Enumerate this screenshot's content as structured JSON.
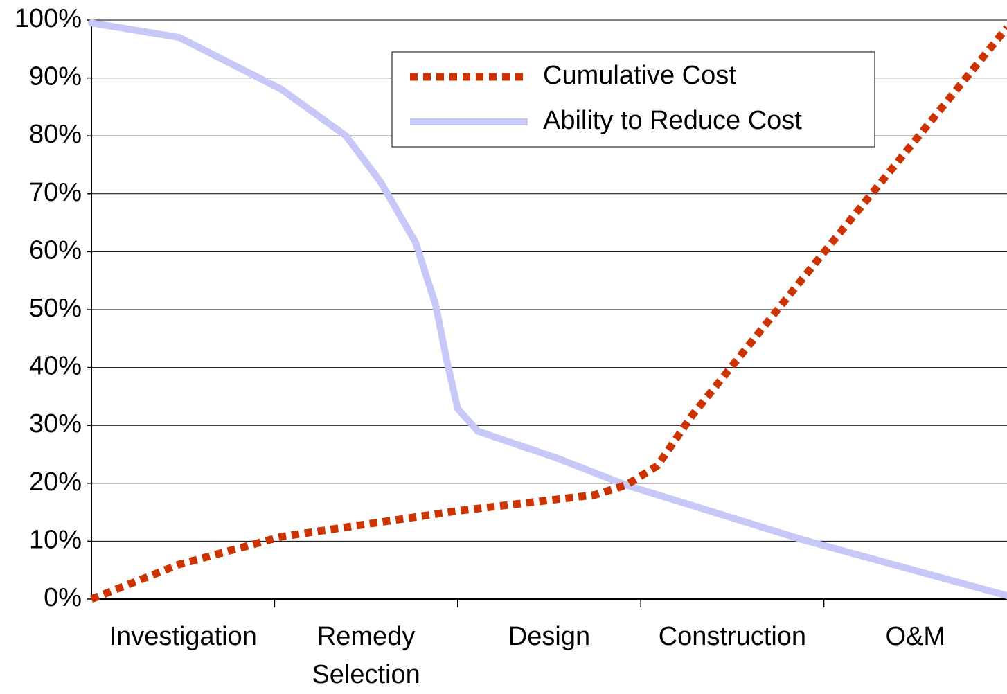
{
  "chart_data": {
    "type": "line",
    "categories": [
      "Investigation",
      "Remedy Selection",
      "Design",
      "Construction",
      "O&M"
    ],
    "xlim": [
      0,
      5
    ],
    "ylim": [
      0,
      100
    ],
    "yticks": [
      {
        "value": 0,
        "label": "0%"
      },
      {
        "value": 10,
        "label": "10%"
      },
      {
        "value": 20,
        "label": "20%"
      },
      {
        "value": 30,
        "label": "30%"
      },
      {
        "value": 40,
        "label": "40%"
      },
      {
        "value": 50,
        "label": "50%"
      },
      {
        "value": 60,
        "label": "60%"
      },
      {
        "value": 70,
        "label": "70%"
      },
      {
        "value": 80,
        "label": "80%"
      },
      {
        "value": 90,
        "label": "90%"
      },
      {
        "value": 100,
        "label": "100%"
      }
    ],
    "grid": true,
    "legend": "top-right",
    "series": [
      {
        "name": "Cumulative Cost",
        "color": "#cc3300",
        "style": "dotted",
        "x": [
          0,
          0.48,
          1.04,
          1.99,
          2.75,
          2.92,
          3.09,
          3.28,
          3.89,
          5
        ],
        "values": [
          0,
          6,
          10.8,
          15.2,
          18,
          19.7,
          23,
          31.7,
          55.6,
          98.7
        ]
      },
      {
        "name": "Ability to Reduce Cost",
        "color": "#c8c8f8",
        "style": "solid",
        "x": [
          0,
          0.48,
          1.04,
          1.39,
          1.58,
          1.77,
          1.88,
          1.94,
          2.0,
          2.11,
          2.53,
          2.92,
          3.89,
          5
        ],
        "values": [
          99.5,
          97,
          88,
          80,
          72,
          61.6,
          50.8,
          41.3,
          32.9,
          29,
          24.5,
          19.7,
          10.2,
          0.6
        ]
      }
    ]
  }
}
